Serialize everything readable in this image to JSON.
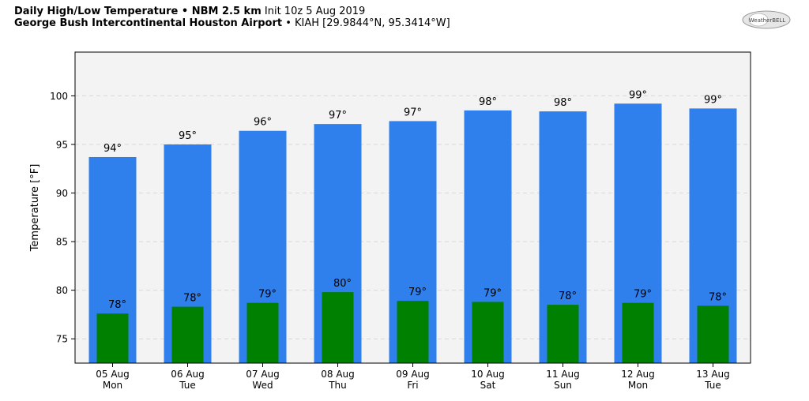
{
  "header": {
    "line1_bold": "Daily High/Low Temperature • NBM 2.5 km",
    "line1_init": "Init 10z 5 Aug 2019",
    "line2_bold": "George Bush Intercontinental Houston Airport",
    "line2_station": "• KIAH [29.9844°N, 95.3414°W]"
  },
  "logo": {
    "text": "WeatherBELL"
  },
  "colors": {
    "high": "#2f80ed",
    "low": "#008000",
    "plot_bg": "#f3f3f3"
  },
  "chart_data": {
    "type": "bar",
    "xlabel": "",
    "ylabel": "Temperature [°F]",
    "ylim": [
      72.5,
      104.5
    ],
    "yticks": [
      75,
      80,
      85,
      90,
      95,
      100
    ],
    "grid": true,
    "categories": [
      "05 Aug|Mon",
      "06 Aug|Tue",
      "07 Aug|Wed",
      "08 Aug|Thu",
      "09 Aug|Fri",
      "10 Aug|Sat",
      "11 Aug|Sun",
      "12 Aug|Mon",
      "13 Aug|Tue"
    ],
    "series": [
      {
        "values": [
          93.7,
          95.0,
          96.4,
          97.1,
          97.4,
          98.5,
          98.4,
          99.2,
          98.7
        ],
        "labels": [
          "94°",
          "95°",
          "96°",
          "97°",
          "97°",
          "98°",
          "98°",
          "99°",
          "99°"
        ]
      },
      {
        "values": [
          77.6,
          78.3,
          78.7,
          79.8,
          78.9,
          78.8,
          78.5,
          78.7,
          78.4
        ],
        "labels": [
          "78°",
          "78°",
          "79°",
          "80°",
          "79°",
          "79°",
          "78°",
          "79°",
          "78°"
        ]
      }
    ]
  }
}
